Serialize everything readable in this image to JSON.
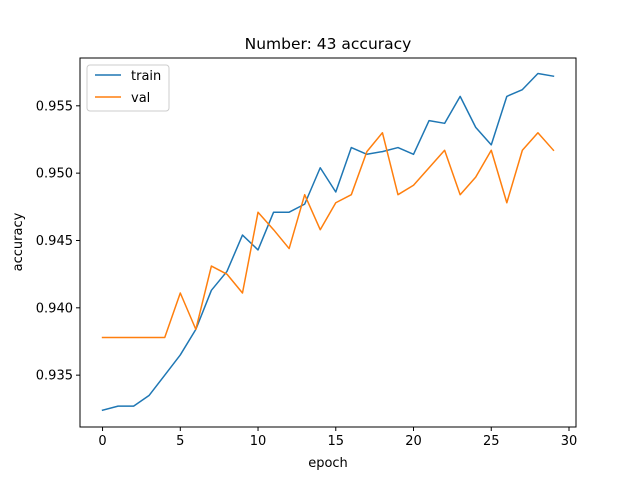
{
  "chart_data": {
    "type": "line",
    "title": "Number: 43 accuracy",
    "xlabel": "epoch",
    "ylabel": "accuracy",
    "xlim": [
      -1.45,
      30.45
    ],
    "ylim": [
      0.93115,
      0.95855
    ],
    "xticks": [
      0,
      5,
      10,
      15,
      20,
      25,
      30
    ],
    "xtick_labels": [
      "0",
      "5",
      "10",
      "15",
      "20",
      "25",
      "30"
    ],
    "yticks": [
      0.935,
      0.94,
      0.945,
      0.95,
      0.955
    ],
    "ytick_labels": [
      "0.935",
      "0.940",
      "0.945",
      "0.950",
      "0.955"
    ],
    "grid": false,
    "legend_position": "upper left",
    "x": [
      0,
      1,
      2,
      3,
      4,
      5,
      6,
      7,
      8,
      9,
      10,
      11,
      12,
      13,
      14,
      15,
      16,
      17,
      18,
      19,
      20,
      21,
      22,
      23,
      24,
      25,
      26,
      27,
      28,
      29
    ],
    "series": [
      {
        "name": "train",
        "color": "#1f77b4",
        "values": [
          0.9324,
          0.9327,
          0.9327,
          0.9335,
          0.935,
          0.9365,
          0.9384,
          0.9413,
          0.9427,
          0.9454,
          0.9443,
          0.9471,
          0.9471,
          0.9477,
          0.9504,
          0.9486,
          0.9519,
          0.9514,
          0.9516,
          0.9519,
          0.9514,
          0.9539,
          0.9537,
          0.9557,
          0.9534,
          0.9521,
          0.9557,
          0.9562,
          0.9574,
          0.9572
        ]
      },
      {
        "name": "val",
        "color": "#ff7f0e",
        "values": [
          0.9378,
          0.9378,
          0.9378,
          0.9378,
          0.9378,
          0.9411,
          0.9384,
          0.9431,
          0.9425,
          0.9411,
          0.9471,
          0.9458,
          0.9444,
          0.9484,
          0.9458,
          0.9478,
          0.9484,
          0.9516,
          0.953,
          0.9484,
          0.9491,
          0.9504,
          0.9517,
          0.9484,
          0.9497,
          0.9517,
          0.9478,
          0.9517,
          0.953,
          0.9517
        ]
      }
    ]
  }
}
